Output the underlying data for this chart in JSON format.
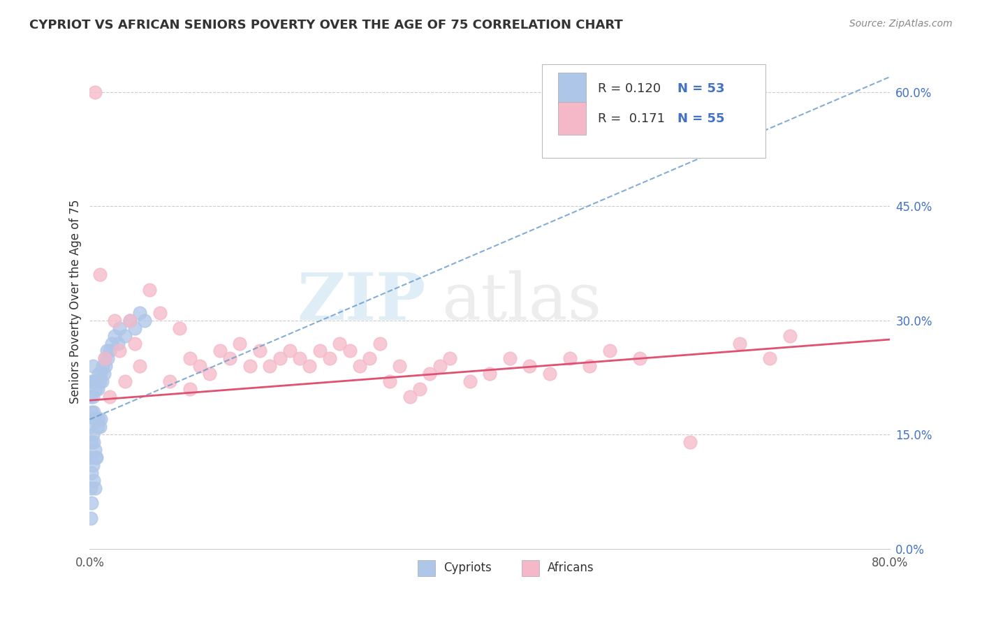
{
  "title": "CYPRIOT VS AFRICAN SENIORS POVERTY OVER THE AGE OF 75 CORRELATION CHART",
  "source": "Source: ZipAtlas.com",
  "ylabel": "Seniors Poverty Over the Age of 75",
  "xlim": [
    0.0,
    0.8
  ],
  "ylim": [
    0.0,
    0.65
  ],
  "ytick_positions": [
    0.0,
    0.15,
    0.3,
    0.45,
    0.6
  ],
  "ytick_labels_right": [
    "0.0%",
    "15.0%",
    "30.0%",
    "45.0%",
    "60.0%"
  ],
  "cypriot_color": "#aec6e8",
  "african_color": "#f5b8c8",
  "cypriot_edge": "#7aadd4",
  "african_edge": "#e87d9a",
  "trend_cypriot_color": "#6699cc",
  "trend_african_color": "#e05070",
  "R_cypriot": 0.12,
  "N_cypriot": 53,
  "R_african": 0.171,
  "N_african": 55,
  "legend_label_cypriot": "Cypriots",
  "legend_label_african": "Africans",
  "watermark_zip": "ZIP",
  "watermark_atlas": "atlas",
  "background_color": "#ffffff",
  "grid_color": "#cccccc",
  "cypriot_x": [
    0.001,
    0.001,
    0.001,
    0.001,
    0.001,
    0.002,
    0.002,
    0.002,
    0.002,
    0.002,
    0.003,
    0.003,
    0.003,
    0.003,
    0.004,
    0.004,
    0.004,
    0.004,
    0.005,
    0.005,
    0.005,
    0.005,
    0.006,
    0.006,
    0.006,
    0.007,
    0.007,
    0.007,
    0.008,
    0.008,
    0.009,
    0.009,
    0.01,
    0.01,
    0.011,
    0.011,
    0.012,
    0.013,
    0.014,
    0.015,
    0.016,
    0.017,
    0.018,
    0.02,
    0.022,
    0.025,
    0.028,
    0.03,
    0.035,
    0.04,
    0.045,
    0.05,
    0.055
  ],
  "cypriot_y": [
    0.2,
    0.16,
    0.12,
    0.08,
    0.04,
    0.22,
    0.18,
    0.14,
    0.1,
    0.06,
    0.24,
    0.2,
    0.15,
    0.11,
    0.22,
    0.18,
    0.14,
    0.09,
    0.22,
    0.17,
    0.13,
    0.08,
    0.21,
    0.17,
    0.12,
    0.22,
    0.17,
    0.12,
    0.21,
    0.16,
    0.23,
    0.17,
    0.22,
    0.16,
    0.23,
    0.17,
    0.22,
    0.24,
    0.23,
    0.25,
    0.24,
    0.26,
    0.25,
    0.26,
    0.27,
    0.28,
    0.27,
    0.29,
    0.28,
    0.3,
    0.29,
    0.31,
    0.3
  ],
  "african_x": [
    0.005,
    0.01,
    0.015,
    0.02,
    0.025,
    0.03,
    0.035,
    0.04,
    0.045,
    0.05,
    0.06,
    0.07,
    0.08,
    0.09,
    0.1,
    0.1,
    0.11,
    0.12,
    0.13,
    0.14,
    0.15,
    0.16,
    0.17,
    0.18,
    0.19,
    0.2,
    0.21,
    0.22,
    0.23,
    0.24,
    0.25,
    0.26,
    0.27,
    0.28,
    0.29,
    0.3,
    0.31,
    0.32,
    0.33,
    0.34,
    0.35,
    0.36,
    0.38,
    0.4,
    0.42,
    0.44,
    0.46,
    0.48,
    0.5,
    0.52,
    0.55,
    0.6,
    0.65,
    0.68,
    0.7
  ],
  "african_y": [
    0.6,
    0.36,
    0.25,
    0.2,
    0.3,
    0.26,
    0.22,
    0.3,
    0.27,
    0.24,
    0.34,
    0.31,
    0.22,
    0.29,
    0.25,
    0.21,
    0.24,
    0.23,
    0.26,
    0.25,
    0.27,
    0.24,
    0.26,
    0.24,
    0.25,
    0.26,
    0.25,
    0.24,
    0.26,
    0.25,
    0.27,
    0.26,
    0.24,
    0.25,
    0.27,
    0.22,
    0.24,
    0.2,
    0.21,
    0.23,
    0.24,
    0.25,
    0.22,
    0.23,
    0.25,
    0.24,
    0.23,
    0.25,
    0.24,
    0.26,
    0.25,
    0.14,
    0.27,
    0.25,
    0.28
  ],
  "cyp_trend_x0": 0.0,
  "cyp_trend_y0": 0.17,
  "cyp_trend_x1": 0.8,
  "cyp_trend_y1": 0.62,
  "afr_trend_x0": 0.0,
  "afr_trend_y0": 0.195,
  "afr_trend_x1": 0.8,
  "afr_trend_y1": 0.275
}
